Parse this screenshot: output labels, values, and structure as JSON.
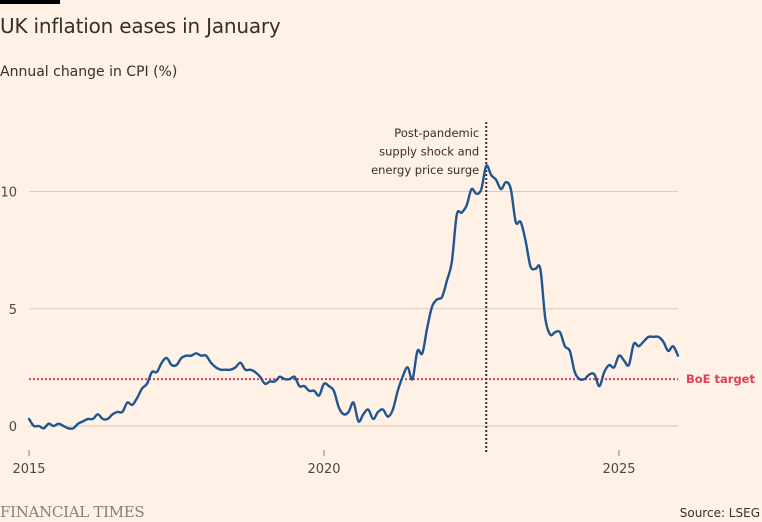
{
  "header": {
    "title": "UK inflation eases in January",
    "subtitle": "Annual change in CPI (%)"
  },
  "footer": {
    "brand": "FINANCIAL TIMES",
    "source": "Source: LSEG"
  },
  "colors": {
    "background": "#fff1e5",
    "line": "#1f5592",
    "target": "#e03e52",
    "grid": "#d9ccc1",
    "annotation": "#33302e"
  },
  "chart_data": {
    "type": "line",
    "title": "UK inflation eases in January",
    "subtitle": "Annual change in CPI (%)",
    "xlabel": "",
    "ylabel": "",
    "xlim": [
      2015.0,
      2026.0
    ],
    "ylim": [
      0,
      12
    ],
    "x_ticks": [
      2015,
      2020,
      2025
    ],
    "x_tick_labels": [
      "2015",
      "2020",
      "2025"
    ],
    "y_ticks": [
      0,
      5,
      10
    ],
    "y_tick_labels": [
      "0",
      "5",
      "10"
    ],
    "grid": true,
    "series": [
      {
        "name": "UK CPI annual change (%)",
        "start": "2015-01",
        "frequency": "monthly",
        "values": [
          0.3,
          0.0,
          0.0,
          -0.1,
          0.1,
          0.0,
          0.1,
          0.0,
          -0.1,
          -0.1,
          0.1,
          0.2,
          0.3,
          0.3,
          0.5,
          0.3,
          0.3,
          0.5,
          0.6,
          0.6,
          1.0,
          0.9,
          1.2,
          1.6,
          1.8,
          2.3,
          2.3,
          2.7,
          2.9,
          2.6,
          2.6,
          2.9,
          3.0,
          3.0,
          3.1,
          3.0,
          3.0,
          2.7,
          2.5,
          2.4,
          2.4,
          2.4,
          2.5,
          2.7,
          2.4,
          2.4,
          2.3,
          2.1,
          1.8,
          1.9,
          1.9,
          2.1,
          2.0,
          2.0,
          2.1,
          1.7,
          1.7,
          1.5,
          1.5,
          1.3,
          1.8,
          1.7,
          1.5,
          0.8,
          0.5,
          0.6,
          1.0,
          0.2,
          0.5,
          0.7,
          0.3,
          0.6,
          0.7,
          0.4,
          0.7,
          1.5,
          2.1,
          2.5,
          2.0,
          3.2,
          3.1,
          4.2,
          5.1,
          5.4,
          5.5,
          6.2,
          7.0,
          9.0,
          9.1,
          9.4,
          10.1,
          9.9,
          10.1,
          11.1,
          10.7,
          10.5,
          10.1,
          10.4,
          10.1,
          8.7,
          8.7,
          7.9,
          6.8,
          6.7,
          6.7,
          4.6,
          3.9,
          4.0,
          4.0,
          3.4,
          3.2,
          2.3,
          2.0,
          2.0,
          2.2,
          2.2,
          1.7,
          2.3,
          2.6,
          2.5,
          3.0,
          2.8,
          2.6,
          3.5,
          3.4,
          3.6,
          3.8,
          3.8,
          3.8,
          3.6,
          3.2,
          3.4,
          3.0
        ]
      }
    ],
    "reference_lines": [
      {
        "axis": "y",
        "value": 2,
        "label": "BoE target",
        "style": "dotted"
      }
    ],
    "annotations": [
      {
        "x": "2022-10",
        "lines": [
          "Post-pandemic",
          "supply shock and",
          "energy price surge"
        ],
        "style": "dotted-vertical"
      }
    ],
    "legend": "none"
  }
}
